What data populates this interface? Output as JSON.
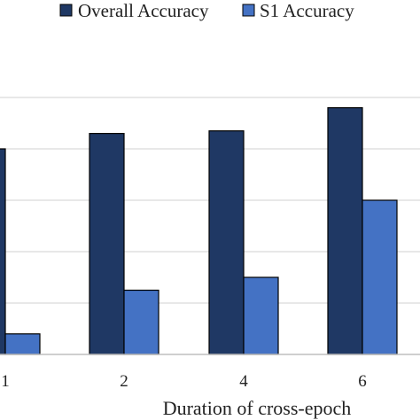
{
  "chart_data": {
    "type": "bar",
    "xlabel": "Duration of cross-epoch",
    "categories": [
      "1",
      "2",
      "4",
      "6"
    ],
    "series": [
      {
        "name": "Overall Accuracy",
        "color": "#1f3864",
        "values": [
          0.8,
          0.86,
          0.87,
          0.96
        ]
      },
      {
        "name": "S1 Accuracy",
        "color": "#4472c4",
        "values": [
          0.08,
          0.25,
          0.3,
          0.6
        ]
      }
    ],
    "ylim": [
      0,
      1.1
    ],
    "gridlines": [
      0.2,
      0.4,
      0.6,
      0.8,
      1.0
    ],
    "grid": true,
    "legend": "top"
  }
}
